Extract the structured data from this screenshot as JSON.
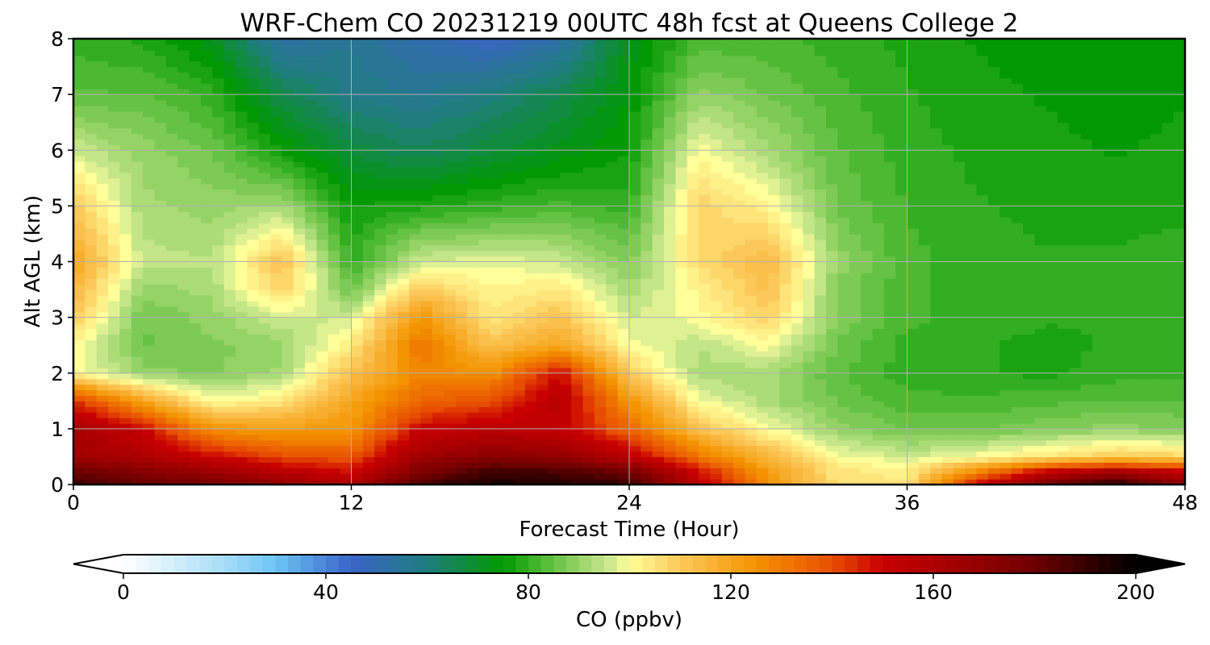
{
  "chart_data": {
    "type": "heatmap",
    "title": "WRF-Chem CO  20231219 00UTC 48h fcst at Queens College 2",
    "xlabel": "Forecast Time (Hour)",
    "ylabel": "Alt AGL (km)",
    "xlim": [
      0,
      48
    ],
    "ylim": [
      0,
      8
    ],
    "xticks": [
      "0",
      "12",
      "24",
      "36",
      "48"
    ],
    "yticks": [
      "0",
      "1",
      "2",
      "3",
      "4",
      "5",
      "6",
      "7",
      "8"
    ],
    "grid": true,
    "x": [
      0,
      3,
      6,
      9,
      12,
      15,
      18,
      21,
      24,
      27,
      30,
      33,
      36,
      39,
      42,
      45,
      48
    ],
    "y": [
      0,
      0.25,
      0.5,
      1,
      1.5,
      2,
      2.5,
      3,
      3.5,
      4,
      5,
      6,
      7,
      8
    ],
    "z": [
      [
        190,
        182,
        178,
        170,
        160,
        188,
        196,
        194,
        190,
        155,
        125,
        105,
        104,
        150,
        178,
        196,
        172
      ],
      [
        180,
        172,
        165,
        155,
        148,
        175,
        188,
        186,
        178,
        148,
        122,
        104,
        103,
        125,
        150,
        160,
        150
      ],
      [
        165,
        160,
        150,
        140,
        138,
        165,
        172,
        170,
        155,
        132,
        115,
        100,
        96,
        100,
        105,
        110,
        108
      ],
      [
        162,
        150,
        125,
        122,
        124,
        150,
        155,
        152,
        135,
        112,
        100,
        90,
        86,
        86,
        88,
        90,
        88
      ],
      [
        145,
        120,
        100,
        104,
        120,
        135,
        140,
        156,
        125,
        100,
        92,
        86,
        82,
        82,
        83,
        84,
        84
      ],
      [
        102,
        90,
        88,
        92,
        112,
        128,
        125,
        150,
        110,
        92,
        92,
        84,
        80,
        79,
        78,
        80,
        81
      ],
      [
        100,
        86,
        88,
        90,
        104,
        132,
        112,
        120,
        100,
        94,
        100,
        86,
        80,
        79,
        78,
        79,
        80
      ],
      [
        110,
        86,
        90,
        96,
        96,
        125,
        104,
        112,
        96,
        100,
        108,
        88,
        82,
        80,
        79,
        79,
        80
      ],
      [
        115,
        90,
        92,
        108,
        86,
        110,
        102,
        104,
        92,
        102,
        112,
        88,
        82,
        80,
        79,
        79,
        80
      ],
      [
        120,
        95,
        94,
        112,
        80,
        96,
        98,
        96,
        88,
        106,
        114,
        90,
        82,
        80,
        79,
        79,
        80
      ],
      [
        110,
        92,
        90,
        92,
        76,
        78,
        80,
        82,
        80,
        108,
        102,
        86,
        81,
        79,
        78,
        78,
        78
      ],
      [
        96,
        90,
        86,
        76,
        68,
        64,
        68,
        72,
        76,
        100,
        92,
        84,
        80,
        78,
        77,
        76,
        77
      ],
      [
        84,
        84,
        80,
        66,
        58,
        56,
        60,
        66,
        74,
        90,
        86,
        82,
        79,
        77,
        76,
        75,
        76
      ],
      [
        80,
        78,
        72,
        52,
        56,
        50,
        46,
        52,
        72,
        82,
        82,
        80,
        78,
        76,
        75,
        74,
        76
      ]
    ],
    "colorbar": {
      "label": "CO  (ppbv)",
      "min": 0,
      "max": 200,
      "ticks": [
        "0",
        "40",
        "80",
        "120",
        "160",
        "200"
      ],
      "extend": "both"
    },
    "colormap": [
      [
        0,
        "#ffffff"
      ],
      [
        20,
        "#a6dcf8"
      ],
      [
        30,
        "#6cc5f5"
      ],
      [
        45,
        "#3a64c8"
      ],
      [
        60,
        "#1f7d7d"
      ],
      [
        75,
        "#009900"
      ],
      [
        85,
        "#66c244"
      ],
      [
        96,
        "#cde88f"
      ],
      [
        100,
        "#ffff99"
      ],
      [
        110,
        "#fcc85a"
      ],
      [
        125,
        "#f49300"
      ],
      [
        140,
        "#e84e00"
      ],
      [
        150,
        "#c80000"
      ],
      [
        165,
        "#a00000"
      ],
      [
        180,
        "#6e0000"
      ],
      [
        200,
        "#000000"
      ]
    ]
  }
}
